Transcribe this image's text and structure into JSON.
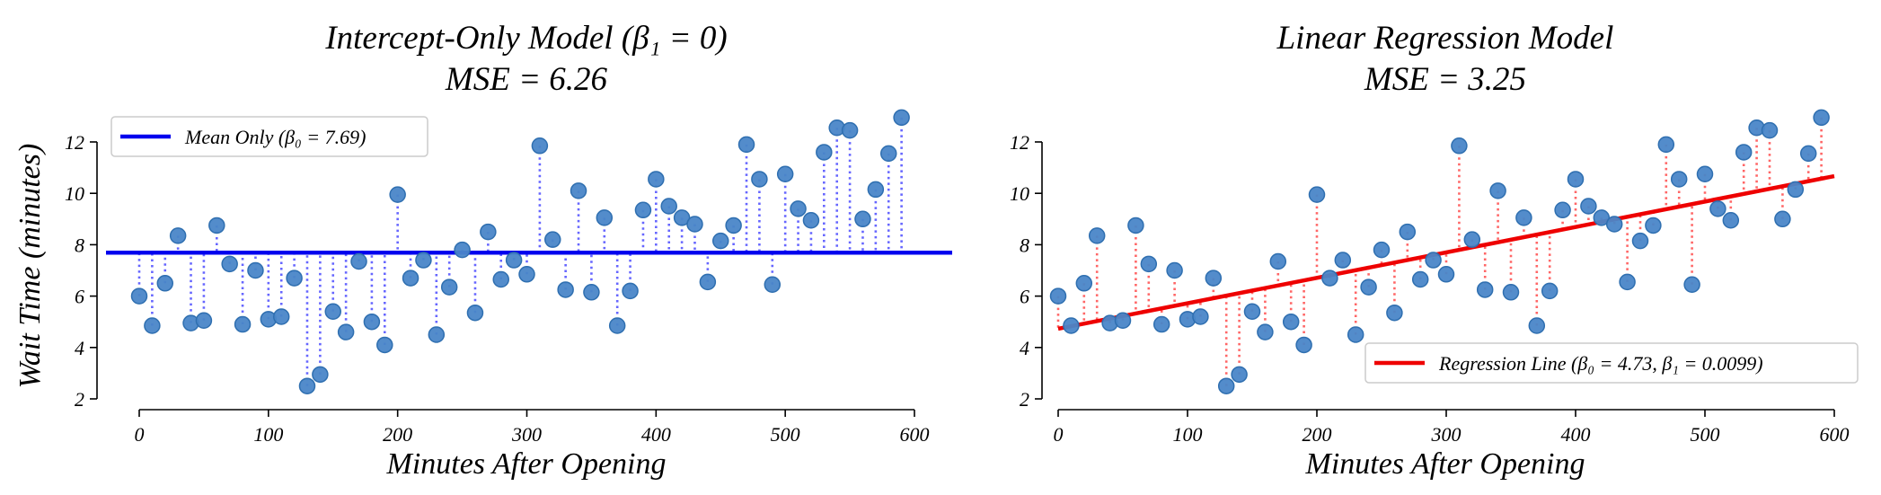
{
  "chart_data": [
    {
      "type": "scatter",
      "title": "Intercept-Only Model (β₁ = 0)",
      "subtitle": "MSE = 6.26",
      "xlabel": "Minutes After Opening",
      "ylabel": "Wait Time (minutes)",
      "xlim": [
        -25,
        630
      ],
      "ylim": [
        2,
        13.3
      ],
      "xticks": [
        0,
        100,
        200,
        300,
        400,
        500,
        600
      ],
      "yticks": [
        2,
        4,
        6,
        8,
        10,
        12
      ],
      "grid": false,
      "legend": {
        "position": "top-left",
        "entries": [
          {
            "label": "Mean Only (β₀ = 7.69)",
            "color": "#0000ee"
          }
        ]
      },
      "model_line": {
        "intercept": 7.69,
        "slope": 0,
        "color": "#0000ee"
      },
      "residual_color": "#6666ff",
      "point_color": "#4a86c8",
      "points": []
    },
    {
      "type": "scatter",
      "title": "Linear Regression Model",
      "subtitle": "MSE = 3.25",
      "xlabel": "Minutes After Opening",
      "ylabel": "",
      "xlim": [
        -5,
        605
      ],
      "ylim": [
        2,
        13.3
      ],
      "xticks": [
        0,
        100,
        200,
        300,
        400,
        500,
        600
      ],
      "yticks": [
        2,
        4,
        6,
        8,
        10,
        12
      ],
      "grid": false,
      "legend": {
        "position": "bottom-right",
        "entries": [
          {
            "label": "Regression Line (β₀ = 4.73, β₁ = 0.0099)",
            "color": "#ee0000"
          }
        ]
      },
      "model_line": {
        "intercept": 4.73,
        "slope": 0.0099,
        "color": "#ee0000"
      },
      "residual_color": "#ff6666",
      "point_color": "#4a86c8",
      "points": []
    }
  ],
  "observations": [
    [
      0,
      6.0
    ],
    [
      10,
      4.85
    ],
    [
      20,
      6.5
    ],
    [
      30,
      8.35
    ],
    [
      40,
      4.95
    ],
    [
      50,
      5.05
    ],
    [
      60,
      8.75
    ],
    [
      70,
      7.25
    ],
    [
      80,
      4.9
    ],
    [
      90,
      7.0
    ],
    [
      100,
      5.1
    ],
    [
      110,
      5.2
    ],
    [
      120,
      6.7
    ],
    [
      130,
      2.5
    ],
    [
      140,
      2.95
    ],
    [
      150,
      5.4
    ],
    [
      160,
      4.6
    ],
    [
      170,
      7.35
    ],
    [
      180,
      5.0
    ],
    [
      190,
      4.1
    ],
    [
      200,
      9.95
    ],
    [
      210,
      6.7
    ],
    [
      220,
      7.4
    ],
    [
      230,
      4.5
    ],
    [
      240,
      6.35
    ],
    [
      250,
      7.8
    ],
    [
      260,
      5.35
    ],
    [
      270,
      8.5
    ],
    [
      280,
      6.65
    ],
    [
      290,
      7.4
    ],
    [
      300,
      6.85
    ],
    [
      310,
      11.85
    ],
    [
      320,
      8.2
    ],
    [
      330,
      6.25
    ],
    [
      340,
      10.1
    ],
    [
      350,
      6.15
    ],
    [
      360,
      9.05
    ],
    [
      370,
      4.85
    ],
    [
      380,
      6.2
    ],
    [
      390,
      9.35
    ],
    [
      400,
      10.55
    ],
    [
      410,
      9.5
    ],
    [
      420,
      9.05
    ],
    [
      430,
      8.8
    ],
    [
      440,
      6.55
    ],
    [
      450,
      8.15
    ],
    [
      460,
      8.75
    ],
    [
      470,
      11.9
    ],
    [
      480,
      10.55
    ],
    [
      490,
      6.45
    ],
    [
      500,
      10.75
    ],
    [
      510,
      9.4
    ],
    [
      520,
      8.95
    ],
    [
      530,
      11.6
    ],
    [
      540,
      12.55
    ],
    [
      550,
      12.45
    ],
    [
      560,
      9.0
    ],
    [
      570,
      10.15
    ],
    [
      580,
      11.55
    ],
    [
      590,
      12.95
    ]
  ]
}
